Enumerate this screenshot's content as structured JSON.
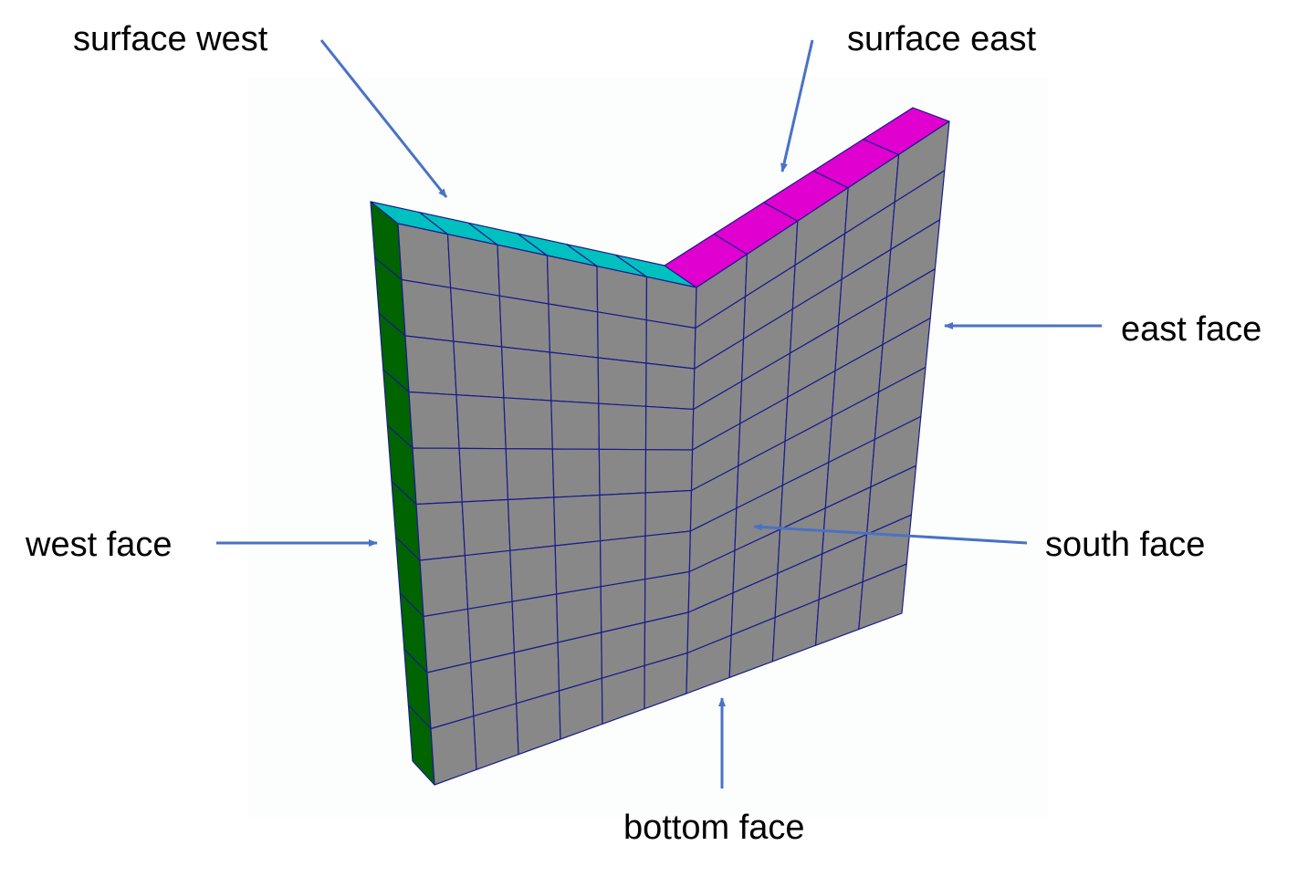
{
  "labels": {
    "surface_west": "surface west",
    "surface_east": "surface east",
    "east_face": "east face",
    "west_face": "west face",
    "south_face": "south face",
    "bottom_face": "bottom face"
  },
  "colors": {
    "mesh_face": "#888888",
    "mesh_line": "#1a1a8c",
    "surface_west_face": "#00c0c0",
    "surface_east_face": "#e000d0",
    "west_face": "#006400",
    "arrow": "#4a72c4",
    "background_panel": "#fcfdfd"
  },
  "mesh": {
    "left_columns": 6,
    "right_columns": 5,
    "rows": 10
  }
}
